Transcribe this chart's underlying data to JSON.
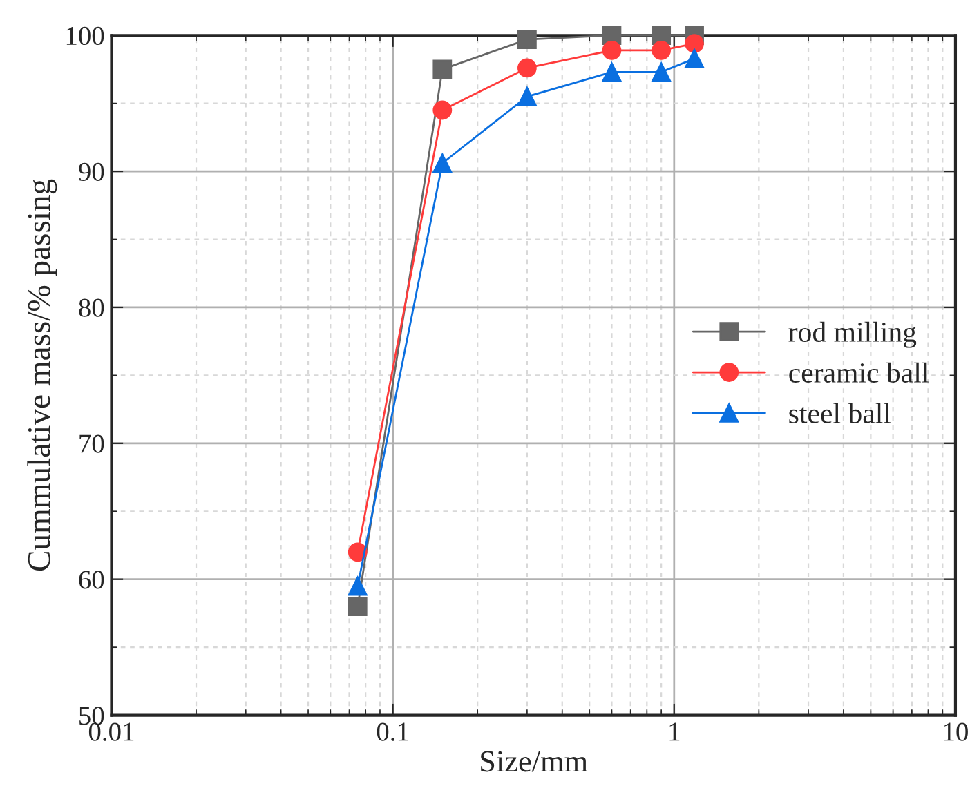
{
  "chart_data": {
    "type": "line",
    "xlabel": "Size/mm",
    "ylabel": "Cummulative mass/% passing",
    "log": "x",
    "xlim": [
      0.01,
      10
    ],
    "xticks": [
      {
        "value": 0.01,
        "label": "0.01"
      },
      {
        "value": 0.1,
        "label": "0.1"
      },
      {
        "value": 1,
        "label": "1"
      },
      {
        "value": 10,
        "label": "10"
      }
    ],
    "ylim": [
      50,
      100
    ],
    "yticks": [
      50,
      60,
      70,
      80,
      90,
      100
    ],
    "grid": true,
    "legend": "right",
    "x": [
      0.075,
      0.15,
      0.3,
      0.6,
      0.9,
      1.18
    ],
    "series": [
      {
        "name": "rod milling",
        "color": "#666666",
        "marker": "square",
        "values": [
          58.0,
          97.5,
          99.7,
          100,
          100,
          100
        ]
      },
      {
        "name": "ceramic ball",
        "color": "#ff3b3b",
        "marker": "circle",
        "values": [
          62.0,
          94.5,
          97.6,
          98.9,
          98.9,
          99.4
        ]
      },
      {
        "name": "steel ball",
        "color": "#0a6fe0",
        "marker": "triangle",
        "values": [
          59.5,
          90.6,
          95.5,
          97.3,
          97.3,
          98.3
        ]
      }
    ]
  }
}
